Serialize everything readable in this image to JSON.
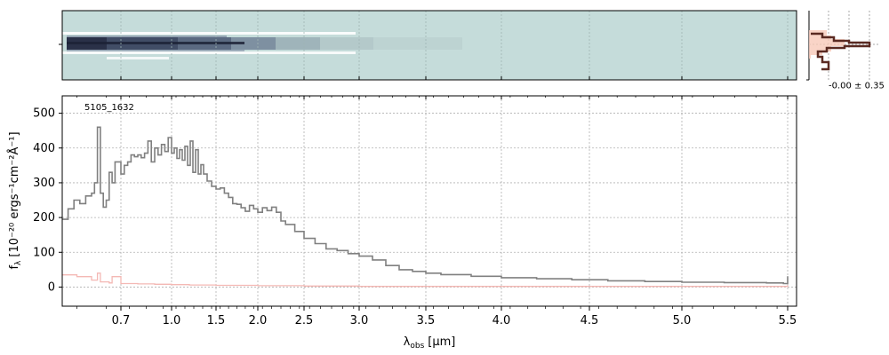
{
  "chart_data": {
    "type": "line",
    "id_label": "5105_1632",
    "xlabel": "λ",
    "xlabel_sub": "obs",
    "xlabel_unit": "[μm]",
    "ylabel": "f",
    "ylabel_sub": "λ",
    "ylabel_unit": "[10⁻²⁰ ergs⁻¹cm⁻²Å⁻¹]",
    "x_scale": "reciprocal-like (compressed at long wavelength)",
    "x_ticks": [
      "0.7",
      "1.0",
      "1.5",
      "2.0",
      "2.5",
      "3.0",
      "3.5",
      "4.0",
      "4.5",
      "5.0",
      "5.5"
    ],
    "x_tick_values": [
      0.7,
      1.0,
      1.5,
      2.0,
      2.5,
      3.0,
      3.5,
      4.0,
      4.5,
      5.0,
      5.5
    ],
    "y_ticks": [
      "0",
      "100",
      "200",
      "300",
      "400",
      "500"
    ],
    "y_tick_values": [
      0,
      100,
      200,
      300,
      400,
      500
    ],
    "xlim": [
      0.5,
      5.52
    ],
    "ylim": [
      -55,
      550
    ],
    "grid": true,
    "inset_label": "-0.00 ± 0.35",
    "series": [
      {
        "color": "#808080",
        "x": [
          0.5,
          0.52,
          0.54,
          0.56,
          0.58,
          0.6,
          0.61,
          0.62,
          0.63,
          0.64,
          0.65,
          0.66,
          0.67,
          0.68,
          0.7,
          0.72,
          0.74,
          0.76,
          0.78,
          0.8,
          0.82,
          0.84,
          0.86,
          0.88,
          0.9,
          0.92,
          0.94,
          0.96,
          0.98,
          1.0,
          1.03,
          1.06,
          1.09,
          1.12,
          1.15,
          1.18,
          1.21,
          1.24,
          1.27,
          1.3,
          1.33,
          1.36,
          1.4,
          1.45,
          1.5,
          1.55,
          1.6,
          1.65,
          1.7,
          1.75,
          1.8,
          1.85,
          1.9,
          1.95,
          2.0,
          2.05,
          2.1,
          2.15,
          2.2,
          2.25,
          2.3,
          2.4,
          2.5,
          2.6,
          2.7,
          2.8,
          2.9,
          3.0,
          3.1,
          3.2,
          3.3,
          3.4,
          3.5,
          3.6,
          3.8,
          4.0,
          4.2,
          4.4,
          4.6,
          4.8,
          5.0,
          5.2,
          5.4,
          5.48,
          5.5
        ],
        "y": [
          195,
          225,
          250,
          240,
          262,
          270,
          300,
          460,
          270,
          230,
          250,
          330,
          300,
          360,
          325,
          350,
          360,
          380,
          375,
          380,
          372,
          385,
          420,
          360,
          400,
          380,
          410,
          390,
          430,
          385,
          400,
          370,
          395,
          365,
          405,
          350,
          420,
          330,
          395,
          325,
          352,
          325,
          305,
          290,
          282,
          285,
          270,
          258,
          240,
          238,
          228,
          218,
          235,
          225,
          215,
          228,
          220,
          230,
          215,
          190,
          180,
          160,
          140,
          125,
          110,
          105,
          96,
          89,
          78,
          62,
          50,
          45,
          40,
          36,
          31,
          27,
          24,
          21,
          18,
          16,
          14,
          13,
          12,
          10,
          31
        ]
      },
      {
        "color": "#f4b8b4",
        "x": [
          0.5,
          0.55,
          0.6,
          0.62,
          0.63,
          0.66,
          0.67,
          0.7,
          0.8,
          0.9,
          1.0,
          1.2,
          1.5,
          2.0,
          2.5,
          3.0,
          3.5,
          4.0,
          4.5,
          5.0,
          5.5
        ],
        "y": [
          35,
          30,
          20,
          40,
          15,
          12,
          30,
          10,
          9,
          8,
          7,
          6,
          5,
          4,
          3,
          2,
          2,
          2,
          2,
          2,
          5
        ]
      }
    ]
  }
}
